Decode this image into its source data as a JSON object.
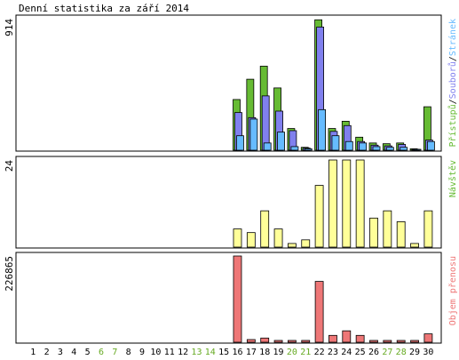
{
  "title": "Denní statistika za září 2014",
  "colors": {
    "hits": "#66bb33",
    "files": "#8080ee",
    "pages": "#66bbff",
    "visits": "#ffff99",
    "kbytes": "#ee7777",
    "weekend_label": "#66aa22",
    "weekday_label": "#000000",
    "border": "#000000"
  },
  "chart_data": [
    {
      "type": "bar",
      "panel": "top",
      "y_max_label": "914",
      "ylim": [
        0,
        914
      ],
      "right_legend": [
        {
          "text": "Přístupů",
          "color": "#66bb33"
        },
        {
          "text": "/",
          "color": "#000000"
        },
        {
          "text": "Souborů",
          "color": "#8080ee"
        },
        {
          "text": "/",
          "color": "#000000"
        },
        {
          "text": "Stránek",
          "color": "#66bbff"
        }
      ],
      "categories": [
        "1",
        "2",
        "3",
        "4",
        "5",
        "6",
        "7",
        "8",
        "9",
        "10",
        "11",
        "12",
        "13",
        "14",
        "15",
        "16",
        "17",
        "18",
        "19",
        "20",
        "21",
        "22",
        "23",
        "24",
        "25",
        "26",
        "27",
        "28",
        "29",
        "30"
      ],
      "series": [
        {
          "name": "Přístupů",
          "values": [
            0,
            0,
            0,
            0,
            0,
            0,
            0,
            0,
            0,
            0,
            0,
            0,
            0,
            0,
            0,
            350,
            490,
            580,
            430,
            150,
            20,
            900,
            150,
            200,
            90,
            50,
            45,
            50,
            10,
            300
          ]
        },
        {
          "name": "Souborů",
          "values": [
            0,
            0,
            0,
            0,
            0,
            0,
            0,
            0,
            0,
            0,
            0,
            0,
            0,
            0,
            0,
            260,
            225,
            375,
            270,
            135,
            15,
            850,
            130,
            170,
            60,
            35,
            30,
            40,
            5,
            70
          ]
        },
        {
          "name": "Stránek",
          "values": [
            0,
            0,
            0,
            0,
            0,
            0,
            0,
            0,
            0,
            0,
            0,
            0,
            0,
            0,
            0,
            100,
            215,
            50,
            125,
            25,
            10,
            280,
            100,
            60,
            50,
            25,
            20,
            20,
            4,
            60
          ]
        }
      ]
    },
    {
      "type": "bar",
      "panel": "middle",
      "y_max_label": "24",
      "ylim": [
        0,
        24
      ],
      "right_legend": [
        {
          "text": "Návštěv",
          "color": "#66bb33"
        }
      ],
      "categories": [
        "1",
        "2",
        "3",
        "4",
        "5",
        "6",
        "7",
        "8",
        "9",
        "10",
        "11",
        "12",
        "13",
        "14",
        "15",
        "16",
        "17",
        "18",
        "19",
        "20",
        "21",
        "22",
        "23",
        "24",
        "25",
        "26",
        "27",
        "28",
        "29",
        "30"
      ],
      "series": [
        {
          "name": "Návštěv",
          "values": [
            0,
            0,
            0,
            0,
            0,
            0,
            0,
            0,
            0,
            0,
            0,
            0,
            0,
            0,
            0,
            5,
            4,
            10,
            5,
            1,
            2,
            17,
            24,
            24,
            24,
            8,
            10,
            7,
            1,
            10
          ]
        }
      ]
    },
    {
      "type": "bar",
      "panel": "bottom",
      "y_max_label": "226865",
      "ylim": [
        0,
        226865
      ],
      "right_legend": [
        {
          "text": "Objem přenosu",
          "color": "#ee7777"
        }
      ],
      "categories": [
        "1",
        "2",
        "3",
        "4",
        "5",
        "6",
        "7",
        "8",
        "9",
        "10",
        "11",
        "12",
        "13",
        "14",
        "15",
        "16",
        "17",
        "18",
        "19",
        "20",
        "21",
        "22",
        "23",
        "24",
        "25",
        "26",
        "27",
        "28",
        "29",
        "30"
      ],
      "series": [
        {
          "name": "Objem přenosu",
          "values": [
            0,
            0,
            0,
            0,
            0,
            0,
            0,
            0,
            0,
            0,
            0,
            0,
            0,
            0,
            0,
            226865,
            7000,
            11000,
            3000,
            3000,
            3000,
            160000,
            18000,
            30000,
            18000,
            3000,
            3000,
            3000,
            3000,
            22000
          ]
        }
      ]
    }
  ],
  "x_labels": [
    {
      "text": "1",
      "weekend": false
    },
    {
      "text": "2",
      "weekend": false
    },
    {
      "text": "3",
      "weekend": false
    },
    {
      "text": "4",
      "weekend": false
    },
    {
      "text": "5",
      "weekend": false
    },
    {
      "text": "6",
      "weekend": true
    },
    {
      "text": "7",
      "weekend": true
    },
    {
      "text": "8",
      "weekend": false
    },
    {
      "text": "9",
      "weekend": false
    },
    {
      "text": "10",
      "weekend": false
    },
    {
      "text": "11",
      "weekend": false
    },
    {
      "text": "12",
      "weekend": false
    },
    {
      "text": "13",
      "weekend": true
    },
    {
      "text": "14",
      "weekend": true
    },
    {
      "text": "15",
      "weekend": false
    },
    {
      "text": "16",
      "weekend": false
    },
    {
      "text": "17",
      "weekend": false
    },
    {
      "text": "18",
      "weekend": false
    },
    {
      "text": "19",
      "weekend": false
    },
    {
      "text": "20",
      "weekend": true
    },
    {
      "text": "21",
      "weekend": true
    },
    {
      "text": "22",
      "weekend": false
    },
    {
      "text": "23",
      "weekend": false
    },
    {
      "text": "24",
      "weekend": false
    },
    {
      "text": "25",
      "weekend": false
    },
    {
      "text": "26",
      "weekend": false
    },
    {
      "text": "27",
      "weekend": true
    },
    {
      "text": "28",
      "weekend": true
    },
    {
      "text": "29",
      "weekend": false
    },
    {
      "text": "30",
      "weekend": false
    }
  ]
}
